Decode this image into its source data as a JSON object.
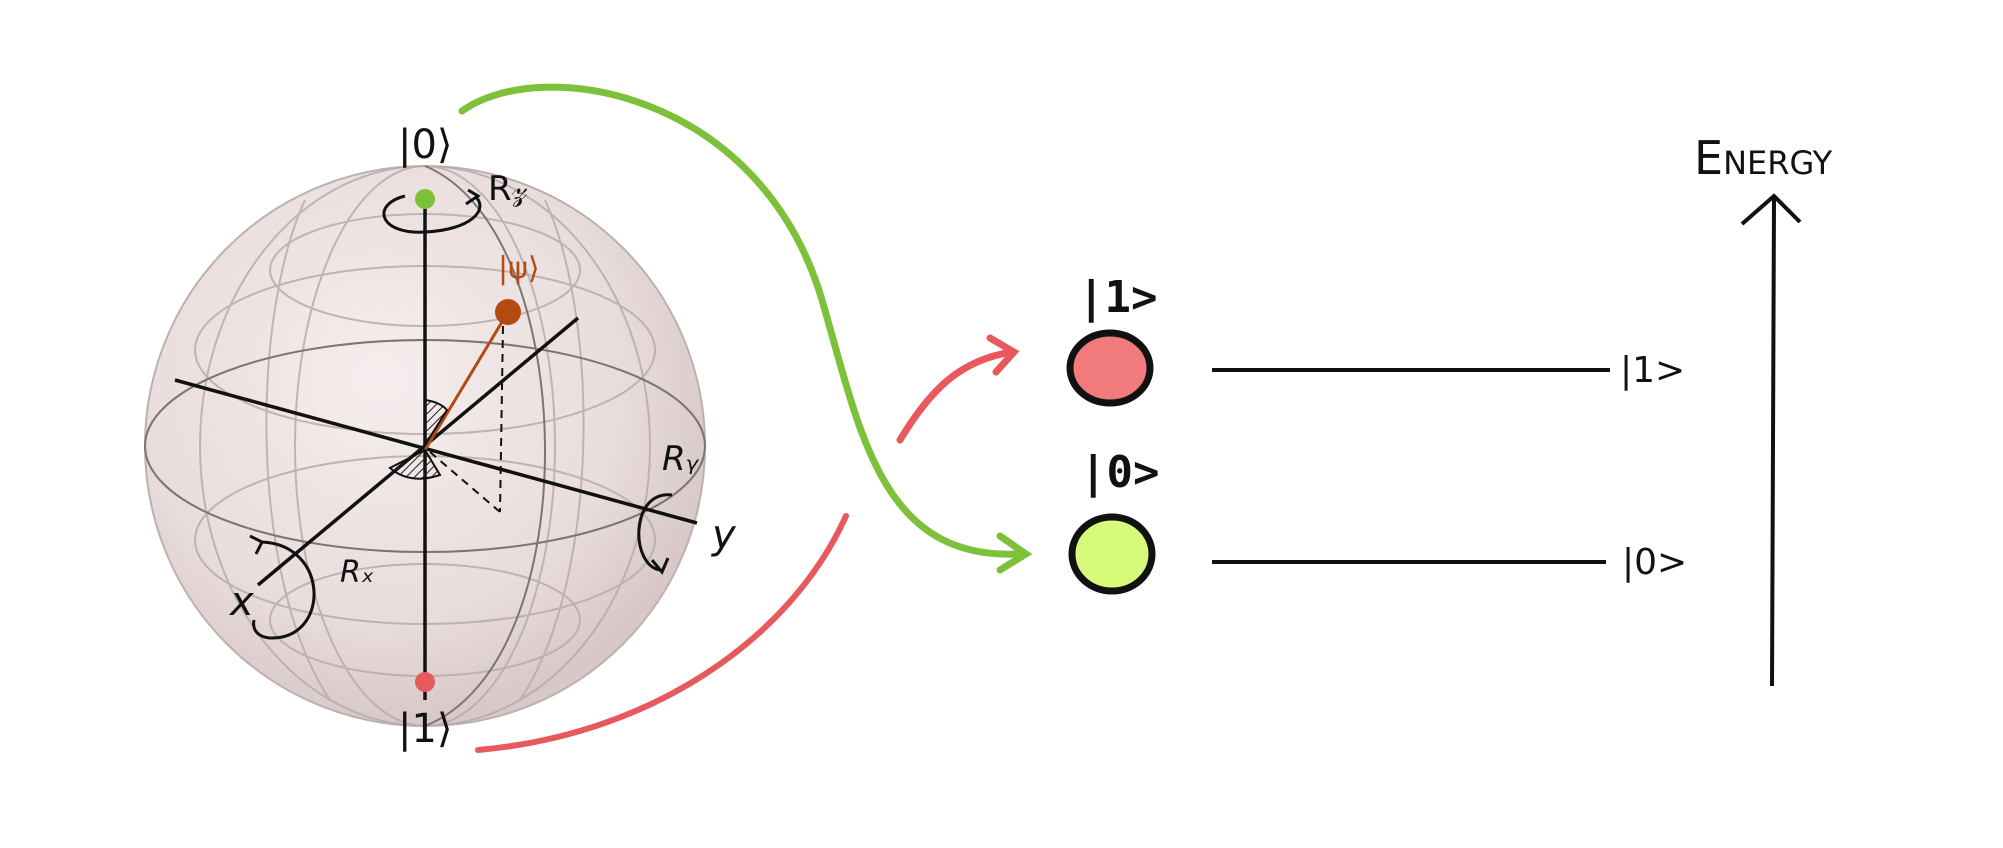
{
  "bloch_sphere": {
    "state_zero": "|0⟩",
    "state_one": "|1⟩",
    "state_psi": "|ψ⟩",
    "axis_x": "x",
    "axis_y": "y",
    "rotation_x": "Rₓ",
    "rotation_y": "Rᵧ",
    "rotation_z": "R𝓏"
  },
  "qubit_levels": {
    "excited_title": "|1>",
    "ground_title": "|0>",
    "excited_level": "|1>",
    "ground_level": "|0>",
    "energy_label": "Energy"
  },
  "colors": {
    "ground": "#7dc13a",
    "excited": "#e8595d",
    "ground_fill": "#d8fa7a",
    "excited_fill": "#f07a7c",
    "psi": "#b34a12",
    "sphere": "#efe4e4"
  }
}
